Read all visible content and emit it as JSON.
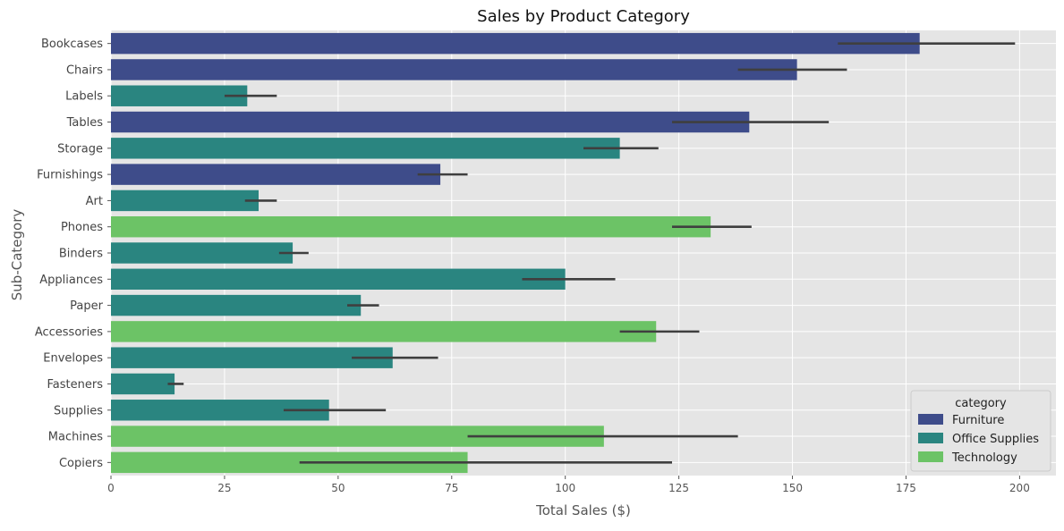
{
  "chart_data": {
    "type": "bar",
    "orientation": "horizontal",
    "title": "Sales by Product Category",
    "xlabel": "Total Sales ($)",
    "ylabel": "Sub-Category",
    "xlim": [
      0,
      208
    ],
    "xticks": [
      0,
      25,
      50,
      75,
      100,
      125,
      150,
      175,
      200
    ],
    "grid": true,
    "legend": {
      "title": "category",
      "placement": "lower-right",
      "entries": [
        "Furniture",
        "Office Supplies",
        "Technology"
      ]
    },
    "colors": {
      "Furniture": "#3e4c8a",
      "Office Supplies": "#2a8580",
      "Technology": "#6cc366"
    },
    "categories": [
      "Bookcases",
      "Chairs",
      "Labels",
      "Tables",
      "Storage",
      "Furnishings",
      "Art",
      "Phones",
      "Binders",
      "Appliances",
      "Paper",
      "Accessories",
      "Envelopes",
      "Fasteners",
      "Supplies",
      "Machines",
      "Copiers"
    ],
    "bars": [
      {
        "label": "Bookcases",
        "category": "Furniture",
        "value": 178,
        "err_low": 160,
        "err_high": 199
      },
      {
        "label": "Chairs",
        "category": "Furniture",
        "value": 151,
        "err_low": 138,
        "err_high": 162
      },
      {
        "label": "Labels",
        "category": "Office Supplies",
        "value": 30,
        "err_low": 25,
        "err_high": 36.5
      },
      {
        "label": "Tables",
        "category": "Furniture",
        "value": 140.5,
        "err_low": 123.5,
        "err_high": 158
      },
      {
        "label": "Storage",
        "category": "Office Supplies",
        "value": 112,
        "err_low": 104,
        "err_high": 120.5
      },
      {
        "label": "Furnishings",
        "category": "Furniture",
        "value": 72.5,
        "err_low": 67.5,
        "err_high": 78.5
      },
      {
        "label": "Art",
        "category": "Office Supplies",
        "value": 32.5,
        "err_low": 29.5,
        "err_high": 36.5
      },
      {
        "label": "Phones",
        "category": "Technology",
        "value": 132,
        "err_low": 123.5,
        "err_high": 141
      },
      {
        "label": "Binders",
        "category": "Office Supplies",
        "value": 40,
        "err_low": 37,
        "err_high": 43.5
      },
      {
        "label": "Appliances",
        "category": "Office Supplies",
        "value": 100,
        "err_low": 90.5,
        "err_high": 111
      },
      {
        "label": "Paper",
        "category": "Office Supplies",
        "value": 55,
        "err_low": 52,
        "err_high": 59
      },
      {
        "label": "Accessories",
        "category": "Technology",
        "value": 120,
        "err_low": 112,
        "err_high": 129.5
      },
      {
        "label": "Envelopes",
        "category": "Office Supplies",
        "value": 62,
        "err_low": 53,
        "err_high": 72
      },
      {
        "label": "Fasteners",
        "category": "Office Supplies",
        "value": 14,
        "err_low": 12.5,
        "err_high": 16
      },
      {
        "label": "Supplies",
        "category": "Office Supplies",
        "value": 48,
        "err_low": 38,
        "err_high": 60.5
      },
      {
        "label": "Machines",
        "category": "Technology",
        "value": 108.5,
        "err_low": 78.5,
        "err_high": 138
      },
      {
        "label": "Copiers",
        "category": "Technology",
        "value": 78.5,
        "err_low": 41.5,
        "err_high": 123.5
      }
    ]
  }
}
